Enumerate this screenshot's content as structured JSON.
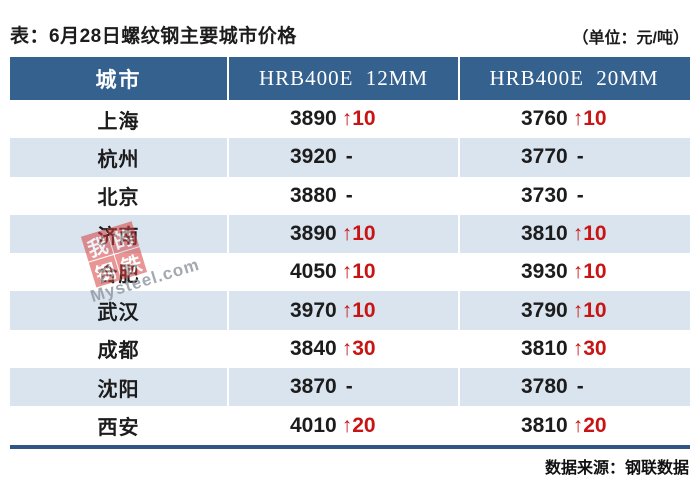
{
  "title": "表：6月28日螺纹钢主要城市价格",
  "unit": "（单位：元/吨）",
  "source": "数据来源：钢联数据",
  "table": {
    "columns": [
      "城市",
      "HRB400E 12MM",
      "HRB400E 20MM"
    ],
    "rows": [
      {
        "city": "上海",
        "p12": "3890",
        "c12": "↑10",
        "p20": "3760",
        "c20": "↑10"
      },
      {
        "city": "杭州",
        "p12": "3920",
        "c12": "-",
        "p20": "3770",
        "c20": "-"
      },
      {
        "city": "北京",
        "p12": "3880",
        "c12": "-",
        "p20": "3730",
        "c20": "-"
      },
      {
        "city": "济南",
        "p12": "3890",
        "c12": "↑10",
        "p20": "3810",
        "c20": "↑10"
      },
      {
        "city": "合肥",
        "p12": "4050",
        "c12": "↑10",
        "p20": "3930",
        "c20": "↑10"
      },
      {
        "city": "武汉",
        "p12": "3970",
        "c12": "↑10",
        "p20": "3790",
        "c20": "↑10"
      },
      {
        "city": "成都",
        "p12": "3840",
        "c12": "↑30",
        "p20": "3810",
        "c20": "↑30"
      },
      {
        "city": "沈阳",
        "p12": "3870",
        "c12": "-",
        "p20": "3780",
        "c20": "-"
      },
      {
        "city": "西安",
        "p12": "4010",
        "c12": "↑20",
        "p20": "3810",
        "c20": "↑20"
      }
    ]
  },
  "watermark": {
    "logo_chars": [
      "我",
      "的",
      "钢",
      "铁"
    ],
    "text": "Mysteel.com"
  },
  "colors": {
    "header_bg": "#35618F",
    "stripe": "#DAE4EF",
    "border_blue": "#2E5787",
    "rise_red": "#C91414",
    "ink": "#1C1C1C"
  },
  "chart_data": {
    "type": "table",
    "title": "6月28日螺纹钢主要城市价格",
    "unit": "元/吨",
    "columns": [
      "城市",
      "HRB400E 12MM",
      "HRB400E 12MM 涨跌",
      "HRB400E 20MM",
      "HRB400E 20MM 涨跌"
    ],
    "rows": [
      [
        "上海",
        3890,
        "+10",
        3760,
        "+10"
      ],
      [
        "杭州",
        3920,
        null,
        3770,
        null
      ],
      [
        "北京",
        3880,
        null,
        3730,
        null
      ],
      [
        "济南",
        3890,
        "+10",
        3810,
        "+10"
      ],
      [
        "合肥",
        4050,
        "+10",
        3930,
        "+10"
      ],
      [
        "武汉",
        3970,
        "+10",
        3790,
        "+10"
      ],
      [
        "成都",
        3840,
        "+30",
        3810,
        "+30"
      ],
      [
        "沈阳",
        3870,
        null,
        3780,
        null
      ],
      [
        "西安",
        4010,
        "+20",
        3810,
        "+20"
      ]
    ],
    "source": "钢联数据",
    "layout_hints": {
      "striped_rows": true,
      "rise_color": "#C91414",
      "header_text_color": "#FFFFFF"
    }
  }
}
